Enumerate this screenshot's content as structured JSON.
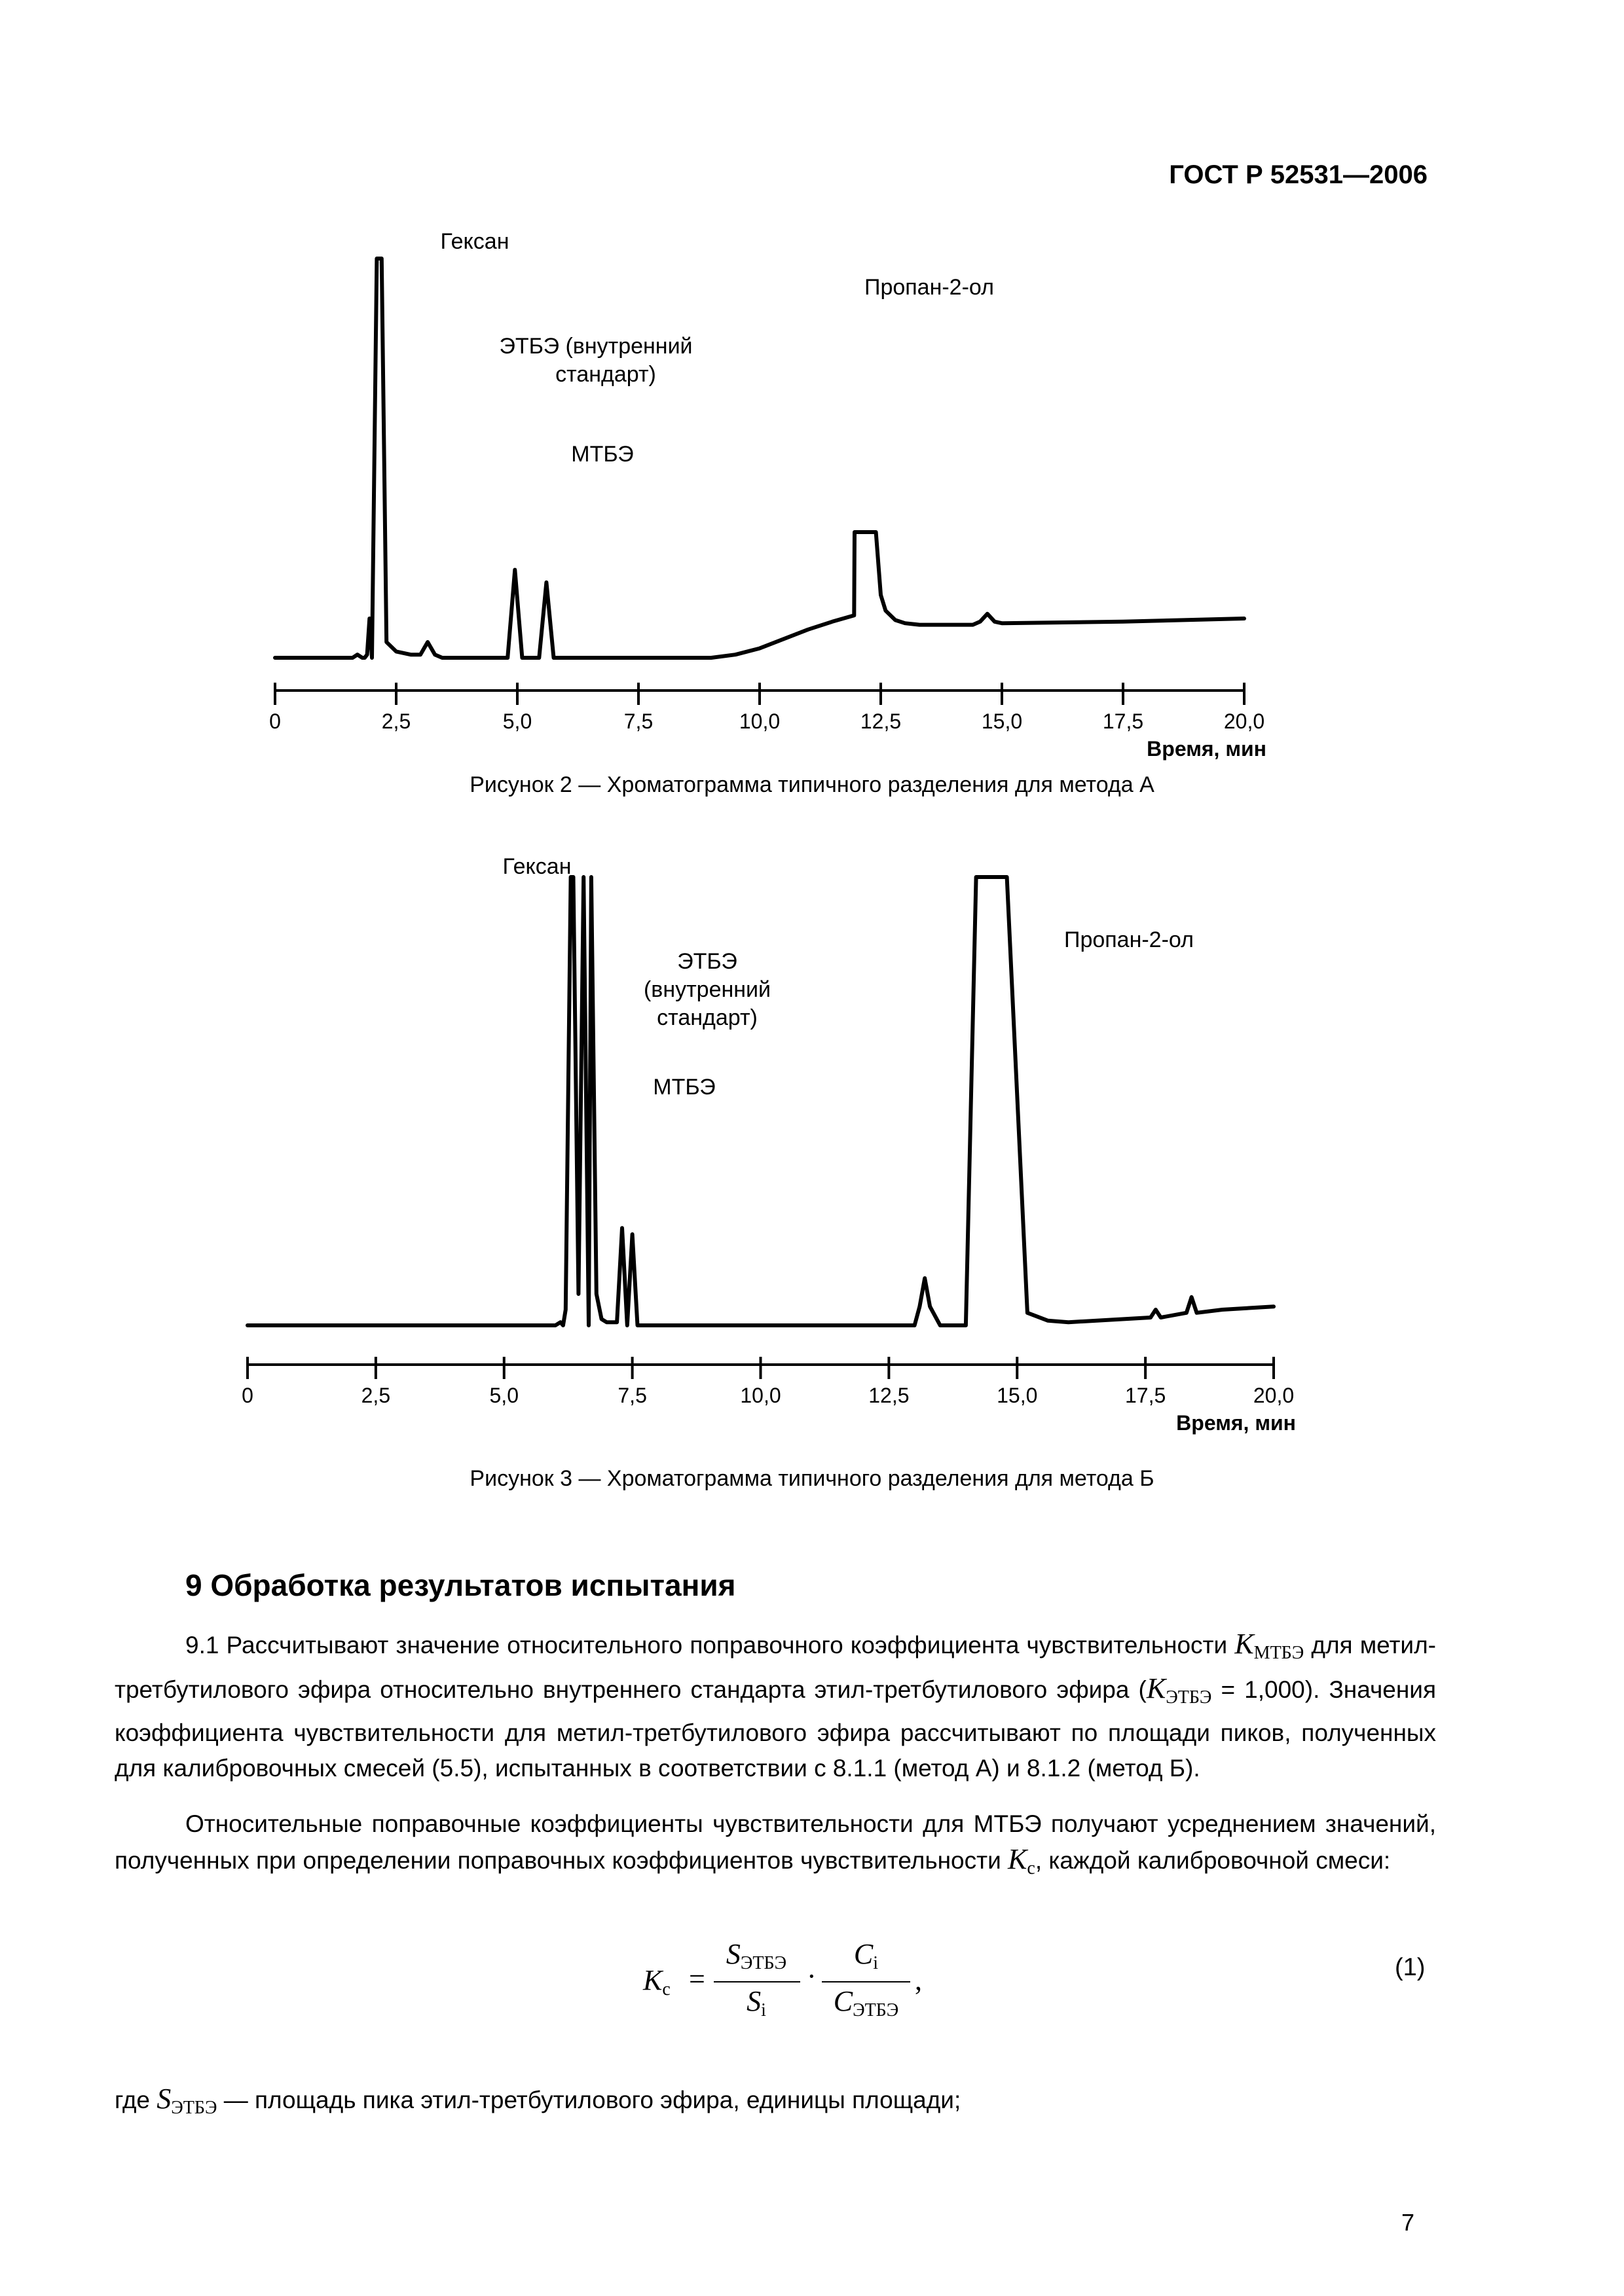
{
  "header": {
    "standard": "ГОСТ Р 52531—2006"
  },
  "figure2": {
    "caption": "Рисунок 2 — Хроматограмма типичного разделения  для метода А",
    "peaks": {
      "hexane": "Гексан",
      "etbe_line1": "ЭТБЭ (внутренний",
      "etbe_line2": "стандарт)",
      "mtbe": "МТБЭ",
      "propanol": "Пропан-2-ол"
    },
    "axis_label": "Время, мин"
  },
  "figure3": {
    "caption": "Рисунок 3 — Хроматограмма типичного разделения для метода Б",
    "peaks": {
      "hexane": "Гексан",
      "etbe_line1": "ЭТБЭ",
      "etbe_line2": "(внутренний",
      "etbe_line3": "стандарт)",
      "mtbe": "МТБЭ",
      "propanol": "Пропан-2-ол"
    },
    "axis_label": "Время, мин"
  },
  "chart_data": [
    {
      "type": "line",
      "title": "",
      "xlabel": "Время, мин",
      "ylabel": "",
      "xlim": [
        0,
        20
      ],
      "x_ticks": [
        "0",
        "2,5",
        "5,0",
        "7,5",
        "10,0",
        "12,5",
        "15,0",
        "17,5",
        "20,0"
      ],
      "y_axis": "none",
      "annotations": [
        "Гексан",
        "ЭТБЭ (внутренний стандарт)",
        "МТБЭ",
        "Пропан-2-ол"
      ],
      "series": [
        {
          "x": [
            0,
            1.5,
            1.6,
            1.7,
            1.8,
            1.85,
            1.9,
            1.95,
            2.0,
            2.1,
            2.2,
            2.3,
            2.5,
            2.8,
            3.0,
            3.15,
            3.3,
            3.45,
            3.6,
            4.0,
            4.5,
            4.8,
            4.95,
            5.1,
            5.3,
            5.45,
            5.6,
            5.75,
            5.85,
            5.95,
            6.2,
            7.0,
            8.0,
            9.0,
            9.5,
            10.0,
            10.5,
            11.0,
            11.5,
            11.95,
            11.96,
            12.4,
            12.5,
            12.6,
            12.8,
            13.0,
            13.3,
            14.0,
            14.4,
            14.55,
            14.7,
            14.85,
            15.0,
            17.5,
            20.0
          ],
          "y": [
            0,
            0,
            0,
            2,
            0,
            0,
            2,
            25,
            0,
            270,
            270,
            10,
            4,
            2,
            2,
            10,
            2,
            0,
            0,
            0,
            0,
            0,
            56,
            0,
            0,
            0,
            48,
            0,
            0,
            0,
            0,
            0,
            0,
            0,
            2,
            6,
            12,
            18,
            23,
            27,
            80,
            80,
            40,
            30,
            24,
            22,
            21,
            21,
            21,
            23,
            28,
            23,
            22,
            23,
            25
          ]
        }
      ]
    },
    {
      "type": "line",
      "title": "",
      "xlabel": "Время, мин",
      "ylabel": "",
      "xlim": [
        0,
        20
      ],
      "x_ticks": [
        "0",
        "2,5",
        "5,0",
        "7,5",
        "10,0",
        "12,5",
        "15,0",
        "17,5",
        "20,0"
      ],
      "y_axis": "none",
      "annotations": [
        "Гексан",
        "ЭТБЭ (внутренний стандарт)",
        "МТБЭ",
        "Пропан-2-ол"
      ],
      "series": [
        {
          "x": [
            0,
            6.0,
            6.1,
            6.15,
            6.2,
            6.3,
            6.35,
            6.45,
            6.55,
            6.65,
            6.7,
            6.8,
            6.9,
            7.0,
            7.1,
            7.2,
            7.3,
            7.4,
            7.5,
            7.6,
            8.0,
            12.0,
            13.0,
            13.1,
            13.2,
            13.3,
            13.5,
            14.0,
            14.2,
            14.3,
            14.7,
            14.8,
            15.2,
            15.6,
            16.0,
            17.6,
            17.7,
            17.8,
            18.3,
            18.4,
            18.5,
            19.0,
            20.0
          ],
          "y": [
            0,
            0,
            2,
            0,
            10,
            300,
            300,
            20,
            300,
            0,
            300,
            20,
            4,
            2,
            2,
            2,
            62,
            0,
            58,
            0,
            0,
            0,
            0,
            12,
            30,
            12,
            0,
            0,
            300,
            300,
            300,
            300,
            8,
            3,
            2,
            5,
            10,
            5,
            8,
            18,
            8,
            10,
            12
          ]
        }
      ]
    }
  ],
  "section": {
    "title": "9 Обработка результатов испытания",
    "p1_lead": "9.1 Рассчитывают значение относительного поправочного коэффициента чувствительности",
    "p1_k": "K",
    "p1_k_sub": "МТБЭ",
    "p1_mid": " для метил-третбутилового эфира относительно внутреннего стандарта этил-третбутилового эфира (",
    "p1_k2": "K",
    "p1_k2_sub": "ЭТБЭ",
    "p1_rest": " = 1,000). Значения коэффициента чувствительности для метил-третбутилового  эфира рассчитывают по площади пиков, полученных для калибровочных смесей (5.5), испытанных в соответствии с 8.1.1 (метод А) и 8.1.2 (метод Б).",
    "p2_text": "Относительные  поправочные коэффициенты чувствительности  для МТБЭ получают усреднением значений, полученных при определении поправочных коэффициентов чувствительности ",
    "p2_k": "K",
    "p2_k_sub": "c",
    "p2_end": ", каждой калибровочной смеси:",
    "formula": {
      "lhs": "K",
      "lhs_sub": "c",
      "eq": "=",
      "num1": "S",
      "num1_sub": "ЭТБЭ",
      "den1": "S",
      "den1_sub": "i",
      "dot": "·",
      "num2": "C",
      "num2_sub": "i",
      "den2": "C",
      "den2_sub": "ЭТБЭ",
      "comma": ",",
      "number": "(1)"
    },
    "where_lead": "где ",
    "where_s": "S",
    "where_sub": "ЭТБЭ",
    "where_text": " — площадь пика этил-третбутилового эфира, единицы площади;"
  },
  "page_number": "7"
}
